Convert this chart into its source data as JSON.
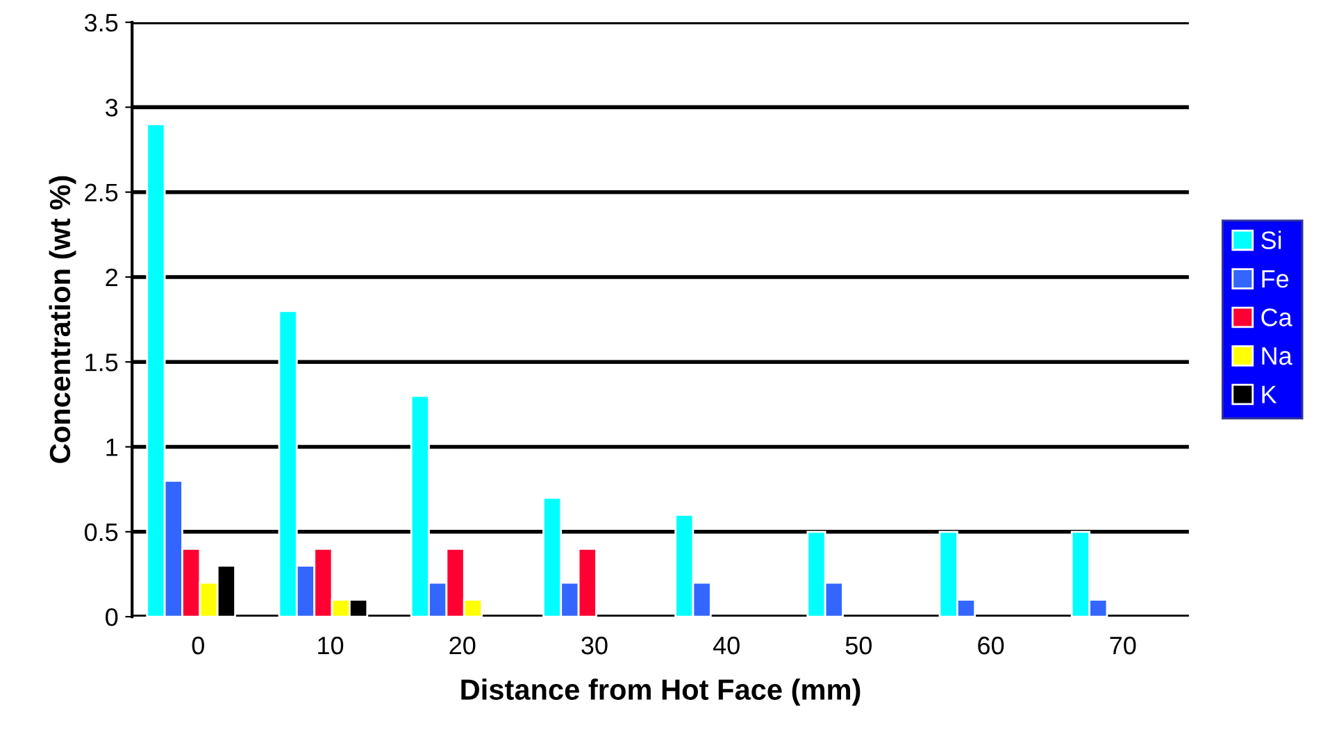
{
  "chart_data": {
    "type": "bar",
    "xlabel": "Distance from Hot Face (mm)",
    "ylabel": "Concentration (wt %)",
    "categories": [
      "0",
      "10",
      "20",
      "30",
      "40",
      "50",
      "60",
      "70"
    ],
    "series": [
      {
        "name": "Si",
        "color": "#00ffff",
        "values": [
          2.9,
          1.8,
          1.3,
          0.7,
          0.6,
          0.5,
          0.5,
          0.5
        ]
      },
      {
        "name": "Fe",
        "color": "#3366ff",
        "values": [
          0.8,
          0.3,
          0.2,
          0.2,
          0.2,
          0.2,
          0.1,
          0.1
        ]
      },
      {
        "name": "Ca",
        "color": "#ff0033",
        "values": [
          0.4,
          0.4,
          0.4,
          0.4,
          null,
          null,
          null,
          null
        ]
      },
      {
        "name": "Na",
        "color": "#ffff00",
        "values": [
          0.2,
          0.1,
          0.1,
          null,
          null,
          null,
          null,
          null
        ]
      },
      {
        "name": "K",
        "color": "#000000",
        "values": [
          0.3,
          0.1,
          null,
          null,
          null,
          null,
          null,
          null
        ]
      }
    ],
    "ylim": [
      0,
      3.5
    ],
    "yticks": [
      0,
      0.5,
      1,
      1.5,
      2,
      2.5,
      3,
      3.5
    ],
    "grid": "y",
    "legend": "right"
  }
}
